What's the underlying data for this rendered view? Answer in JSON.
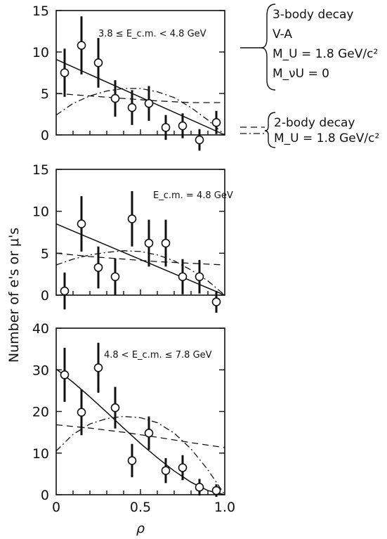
{
  "chart_data": [
    {
      "type": "scatter",
      "annotation": "3.8 ≤ E_c.m. < 4.8 GeV",
      "ylim": [
        0,
        15
      ],
      "xlim": [
        0,
        1.0
      ],
      "yticks": [
        "0",
        "5",
        "10",
        "15"
      ],
      "points": {
        "x": [
          0.05,
          0.15,
          0.25,
          0.35,
          0.45,
          0.55,
          0.65,
          0.75,
          0.85,
          0.95
        ],
        "y": [
          7.5,
          10.8,
          8.7,
          4.4,
          3.3,
          3.8,
          0.9,
          1.1,
          -0.6,
          1.5
        ],
        "err": [
          2.9,
          3.5,
          3.0,
          2.2,
          2.1,
          2.1,
          1.5,
          1.5,
          1.3,
          1.4
        ]
      },
      "series": [
        {
          "style": "solid",
          "x": [
            0,
            1.0
          ],
          "y": [
            9.1,
            0.0
          ]
        },
        {
          "style": "dashed",
          "x": [
            0,
            0.2,
            0.4,
            0.6,
            0.8,
            1.0
          ],
          "y": [
            5.0,
            4.7,
            4.4,
            4.1,
            3.9,
            3.9
          ]
        },
        {
          "style": "dashdot",
          "x": [
            0,
            0.1,
            0.2,
            0.3,
            0.4,
            0.5,
            0.6,
            0.7,
            0.8,
            0.9,
            1.0
          ],
          "y": [
            2.4,
            3.8,
            4.7,
            5.3,
            5.6,
            5.6,
            5.2,
            4.5,
            3.3,
            1.8,
            0.0
          ]
        }
      ]
    },
    {
      "type": "scatter",
      "annotation": "E_c.m. = 4.8 GeV",
      "ylim": [
        0,
        15
      ],
      "xlim": [
        0,
        1.0
      ],
      "yticks": [
        "0",
        "5",
        "10",
        "15"
      ],
      "points": {
        "x": [
          0.05,
          0.15,
          0.25,
          0.35,
          0.45,
          0.55,
          0.65,
          0.75,
          0.85,
          0.95
        ],
        "y": [
          0.5,
          8.5,
          3.3,
          2.2,
          9.1,
          6.2,
          6.2,
          2.2,
          2.2,
          -0.8
        ],
        "err": [
          2.2,
          3.3,
          2.5,
          2.2,
          3.3,
          2.8,
          2.8,
          2.1,
          2.0,
          1.3
        ]
      },
      "series": [
        {
          "style": "solid",
          "x": [
            0,
            1.0
          ],
          "y": [
            8.5,
            0.0
          ]
        },
        {
          "style": "dashed",
          "x": [
            0,
            0.2,
            0.4,
            0.6,
            0.8,
            1.0
          ],
          "y": [
            5.0,
            4.6,
            4.3,
            4.0,
            3.8,
            3.6
          ]
        },
        {
          "style": "dashdot",
          "x": [
            0,
            0.1,
            0.2,
            0.3,
            0.4,
            0.5,
            0.6,
            0.7,
            0.8,
            0.9,
            1.0
          ],
          "y": [
            3.6,
            4.3,
            4.8,
            5.1,
            5.3,
            5.2,
            4.8,
            4.1,
            3.0,
            1.7,
            0.0
          ]
        }
      ]
    },
    {
      "type": "scatter",
      "annotation": "4.8 < E_c.m. ≤ 7.8 GeV",
      "ylim": [
        0,
        40
      ],
      "xlim": [
        0,
        1.0
      ],
      "yticks": [
        "0",
        "10",
        "20",
        "30",
        "40"
      ],
      "xticks": [
        "0",
        "0.5",
        "1.0"
      ],
      "xlabel": "ρ",
      "points": {
        "x": [
          0.05,
          0.15,
          0.25,
          0.35,
          0.45,
          0.55,
          0.65,
          0.75,
          0.85,
          0.95
        ],
        "y": [
          28.8,
          19.8,
          30.5,
          20.9,
          8.2,
          14.8,
          5.8,
          6.5,
          1.8,
          1.0
        ],
        "err": [
          6.5,
          5.5,
          6.0,
          5.0,
          4.0,
          4.0,
          3.0,
          3.0,
          2.0,
          1.5
        ]
      },
      "series": [
        {
          "style": "solid",
          "x": [
            0,
            0.1,
            0.2,
            0.3,
            0.4,
            0.5,
            0.6,
            0.7,
            0.8,
            0.9,
            1.0
          ],
          "y": [
            30.2,
            27.0,
            23.5,
            19.8,
            16.0,
            12.3,
            8.9,
            5.7,
            3.0,
            1.0,
            0.0
          ]
        },
        {
          "style": "dashed",
          "x": [
            0,
            0.2,
            0.4,
            0.6,
            0.8,
            1.0
          ],
          "y": [
            16.8,
            16.0,
            15.0,
            13.8,
            12.5,
            11.3
          ]
        },
        {
          "style": "dashdot",
          "x": [
            0,
            0.1,
            0.2,
            0.3,
            0.4,
            0.5,
            0.6,
            0.7,
            0.8,
            0.9,
            1.0
          ],
          "y": [
            10.5,
            14.5,
            17.0,
            18.3,
            18.8,
            18.5,
            17.3,
            14.8,
            11.0,
            6.0,
            0.0
          ]
        }
      ]
    }
  ],
  "ylabel": "Number of e's or μ's",
  "legend": [
    {
      "style": "solid",
      "lines": [
        "3-body decay",
        "V-A",
        "M_U = 1.8 GeV/c²",
        "M_νU = 0"
      ]
    },
    {
      "style": "dashed+dashdot",
      "lines": [
        "2-body decay",
        "M_U = 1.8 GeV/c²"
      ]
    }
  ]
}
